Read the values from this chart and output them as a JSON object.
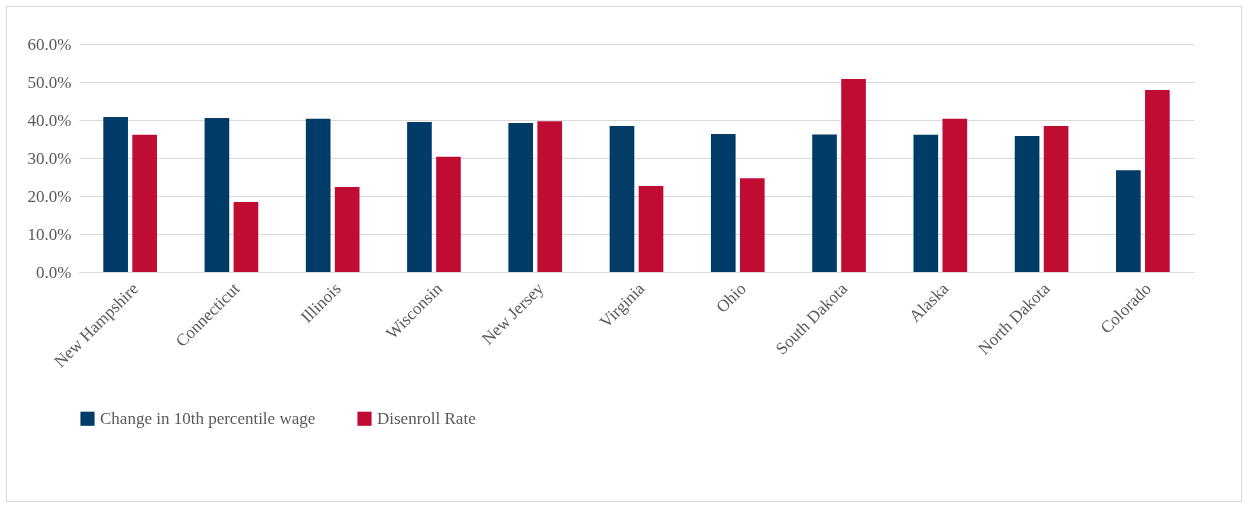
{
  "chart_data": {
    "type": "bar",
    "categories": [
      "New Hampshire",
      "Connecticut",
      "Illinois",
      "Wisconsin",
      "New Jersey",
      "Virginia",
      "Ohio",
      "South Dakota",
      "Alaska",
      "North Dakota",
      "Colorado"
    ],
    "series": [
      {
        "name": "Change in 10th percentile wage",
        "color": "#013b68",
        "values": [
          40.8,
          40.5,
          40.3,
          39.5,
          39.2,
          38.4,
          36.3,
          36.2,
          36.1,
          35.8,
          26.8
        ]
      },
      {
        "name": "Disenroll Rate",
        "color": "#c00b33",
        "values": [
          36.1,
          18.4,
          22.4,
          30.3,
          39.7,
          22.6,
          24.7,
          50.8,
          40.3,
          38.4,
          47.9
        ]
      }
    ],
    "ylim": [
      0,
      60
    ],
    "yticks": [
      {
        "value": 0,
        "label": "0.0%"
      },
      {
        "value": 10,
        "label": "10.0%"
      },
      {
        "value": 20,
        "label": "20.0%"
      },
      {
        "value": 30,
        "label": "30.0%"
      },
      {
        "value": 40,
        "label": "40.0%"
      },
      {
        "value": 50,
        "label": "50.0%"
      },
      {
        "value": 60,
        "label": "60.0%"
      }
    ],
    "grid": "y",
    "legend": "bottom"
  }
}
